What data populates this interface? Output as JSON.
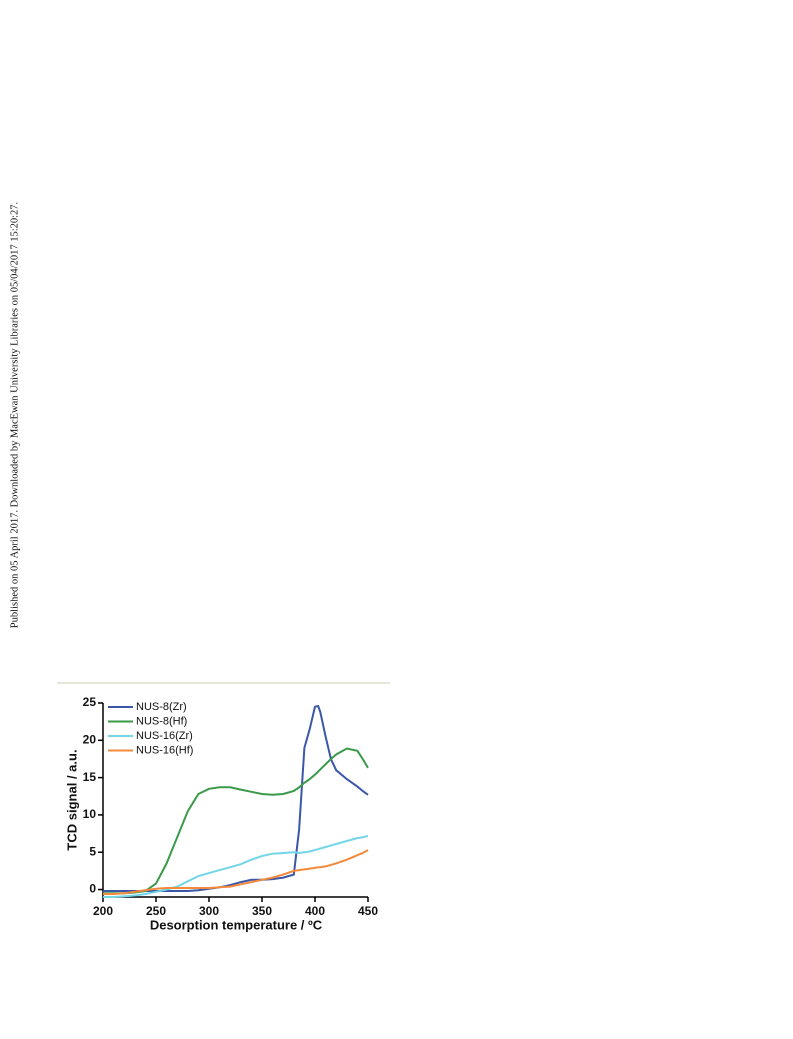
{
  "sidebar": "Published on 05 April 2017. Downloaded by MacEwan University Libraries on 05/04/2017 15:20:27.",
  "chart_data": {
    "type": "line",
    "xlabel": "Desorption temperature / ºC",
    "ylabel": "TCD signal / a.u.",
    "x": [
      200,
      210,
      220,
      230,
      240,
      250,
      260,
      270,
      280,
      290,
      300,
      310,
      320,
      330,
      340,
      350,
      360,
      370,
      380,
      385,
      390,
      395,
      400,
      403,
      405,
      410,
      415,
      420,
      430,
      440,
      445,
      450
    ],
    "xlim": [
      200,
      450
    ],
    "xticks": [
      200,
      250,
      300,
      350,
      400,
      450
    ],
    "ylim": [
      -1,
      25
    ],
    "yticks": [
      0,
      5,
      10,
      15,
      20,
      25
    ],
    "legend": "upper left",
    "series": [
      {
        "name": "NUS-8(Zr)",
        "color": "#3a57a8",
        "values": [
          -0.2,
          -0.2,
          -0.2,
          -0.2,
          -0.2,
          -0.2,
          -0.2,
          -0.2,
          -0.2,
          -0.1,
          0.1,
          0.3,
          0.6,
          1.0,
          1.3,
          1.3,
          1.4,
          1.6,
          2.0,
          8,
          19,
          21.5,
          24.5,
          24.6,
          23.8,
          20.5,
          17.5,
          16,
          14.8,
          13.8,
          13.2,
          12.7
        ]
      },
      {
        "name": "NUS-8(Hf)",
        "color": "#3a9a4a",
        "values": [
          -0.5,
          -0.5,
          -0.5,
          -0.4,
          -0.2,
          0.8,
          3.5,
          7,
          10.5,
          12.8,
          13.5,
          13.7,
          13.7,
          13.4,
          13.1,
          12.8,
          12.7,
          12.8,
          13.2,
          13.7,
          14.3,
          14.8,
          15.4,
          15.8,
          16.1,
          16.8,
          17.5,
          18.1,
          18.9,
          18.6,
          17.5,
          16.3
        ]
      },
      {
        "name": "NUS-16(Zr)",
        "color": "#72d6e8",
        "values": [
          -1,
          -1,
          -0.9,
          -0.8,
          -0.6,
          -0.3,
          0,
          0.4,
          1.1,
          1.8,
          2.2,
          2.6,
          3.0,
          3.4,
          4.0,
          4.5,
          4.8,
          4.9,
          5.0,
          4.9,
          5.0,
          5.1,
          5.3,
          5.4,
          5.5,
          5.7,
          5.9,
          6.1,
          6.5,
          6.9,
          7.0,
          7.2
        ]
      },
      {
        "name": "NUS-16(Hf)",
        "color": "#f5893a",
        "values": [
          -0.6,
          -0.6,
          -0.5,
          -0.3,
          -0.1,
          0.1,
          0.2,
          0.2,
          0.2,
          0.2,
          0.2,
          0.3,
          0.4,
          0.7,
          1.0,
          1.3,
          1.6,
          2.0,
          2.5,
          2.6,
          2.7,
          2.8,
          2.9,
          3.0,
          3.0,
          3.1,
          3.3,
          3.5,
          4.0,
          4.6,
          4.9,
          5.3
        ]
      }
    ]
  }
}
